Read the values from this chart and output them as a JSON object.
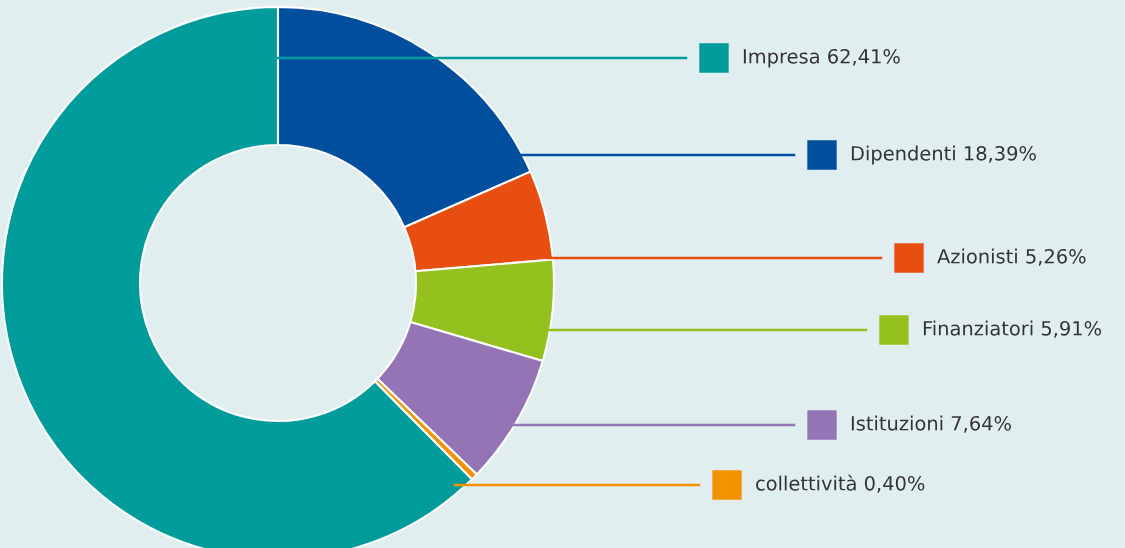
{
  "chart_data": {
    "type": "donut",
    "categories": [
      "Impresa",
      "Dipendenti",
      "Azionisti",
      "Finanziatori",
      "Istituzioni",
      "collettività"
    ],
    "values": [
      62.41,
      18.39,
      5.26,
      5.91,
      7.64,
      0.4
    ],
    "value_labels": [
      "62,41%",
      "18,39%",
      "5,26%",
      "5,91%",
      "7,64%",
      "0,40%"
    ],
    "colors": [
      "#009b9b",
      "#004f9f",
      "#e84e0f",
      "#95c11f",
      "#9474b4",
      "#f39200"
    ],
    "legend": "right"
  }
}
